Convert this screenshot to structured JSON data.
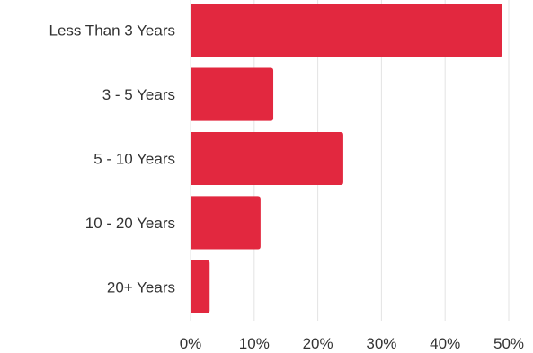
{
  "chart_data": {
    "type": "bar",
    "orientation": "horizontal",
    "categories": [
      "Less Than 3 Years",
      "3 - 5 Years",
      "5 - 10 Years",
      "10 - 20 Years",
      "20+ Years"
    ],
    "values": [
      49,
      13,
      24,
      11,
      3
    ],
    "xlim": [
      0,
      50
    ],
    "x_ticks": [
      "0%",
      "10%",
      "20%",
      "30%",
      "40%",
      "50%"
    ],
    "x_tick_values": [
      0,
      10,
      20,
      30,
      40,
      50
    ],
    "grid": true,
    "bar_color": "#e2283f",
    "title": "",
    "xlabel": "",
    "ylabel": ""
  }
}
